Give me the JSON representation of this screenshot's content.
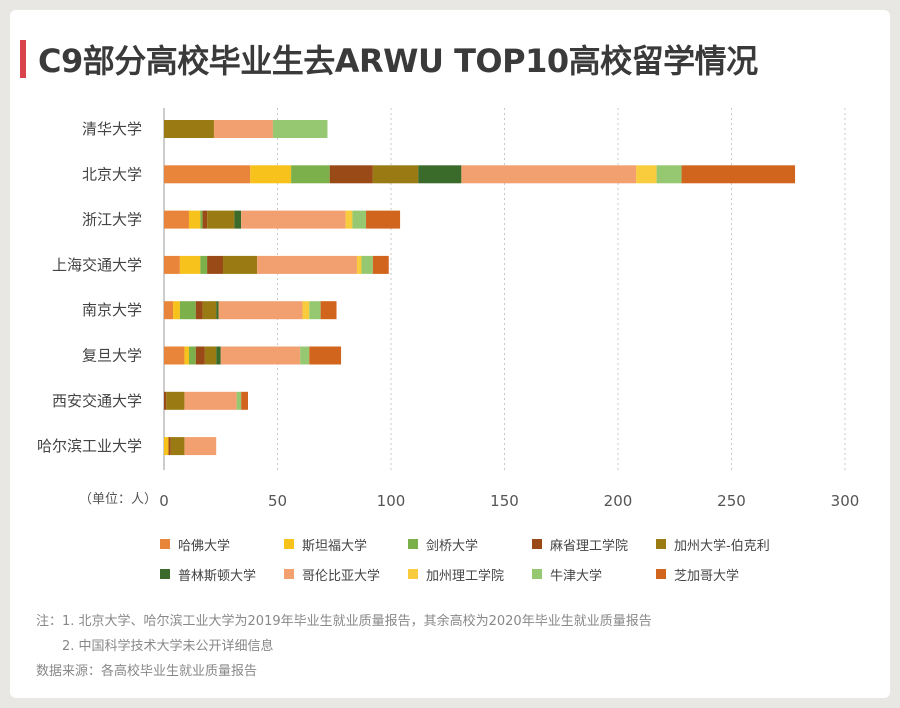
{
  "title": "C9部分高校毕业生去ARWU TOP10高校留学情况",
  "unit_label": "（单位：人）",
  "notes": {
    "note1": "注：1. 北京大学、哈尔滨工业大学为2019年毕业生就业质量报告，其余高校为2020年毕业生就业质量报告",
    "note2": "2. 中国科学技术大学未公开详细信息",
    "source": "数据来源：各高校毕业生就业质量报告"
  },
  "colors": {
    "title_accent": "#d9434b",
    "grid": "#c8c8c8"
  },
  "chart_data": {
    "type": "bar",
    "orientation": "horizontal",
    "stacked": true,
    "title": "C9部分高校毕业生去ARWU TOP10高校留学情况",
    "xlabel": "（单位：人）",
    "ylabel": "",
    "xlim": [
      0,
      300
    ],
    "xticks": [
      0,
      50,
      100,
      150,
      200,
      250,
      300
    ],
    "grid": "vertical-dotted",
    "legend_position": "bottom",
    "categories": [
      "清华大学",
      "北京大学",
      "浙江大学",
      "上海交通大学",
      "南京大学",
      "复旦大学",
      "西安交通大学",
      "哈尔滨工业大学"
    ],
    "series": [
      {
        "name": "哈佛大学",
        "color": "#e8853a",
        "values": [
          0,
          38,
          11,
          7,
          4,
          9,
          0,
          0
        ]
      },
      {
        "name": "斯坦福大学",
        "color": "#f6c21b",
        "values": [
          0,
          18,
          5,
          9,
          3,
          2,
          0,
          2
        ]
      },
      {
        "name": "剑桥大学",
        "color": "#7bb04a",
        "values": [
          0,
          17,
          1,
          3,
          7,
          3,
          0,
          0
        ]
      },
      {
        "name": "麻省理工学院",
        "color": "#9a4a16",
        "values": [
          0,
          19,
          2,
          7,
          3,
          4,
          1,
          1
        ]
      },
      {
        "name": "加州大学-伯克利",
        "color": "#9a7a12",
        "values": [
          22,
          20,
          12,
          15,
          6,
          5,
          8,
          6
        ]
      },
      {
        "name": "普林斯顿大学",
        "color": "#3b6b2a",
        "values": [
          0,
          19,
          3,
          0,
          1,
          2,
          0,
          0
        ]
      },
      {
        "name": "哥伦比亚大学",
        "color": "#f2a070",
        "values": [
          26,
          77,
          46,
          44,
          37,
          35,
          23,
          14
        ]
      },
      {
        "name": "加州理工学院",
        "color": "#f8cc3c",
        "values": [
          0,
          9,
          3,
          2,
          3,
          0,
          0,
          0
        ]
      },
      {
        "name": "牛津大学",
        "color": "#96c872",
        "values": [
          24,
          11,
          6,
          5,
          5,
          4,
          2,
          0
        ]
      },
      {
        "name": "芝加哥大学",
        "color": "#d2651e",
        "values": [
          0,
          50,
          15,
          7,
          7,
          14,
          3,
          0
        ]
      }
    ]
  }
}
